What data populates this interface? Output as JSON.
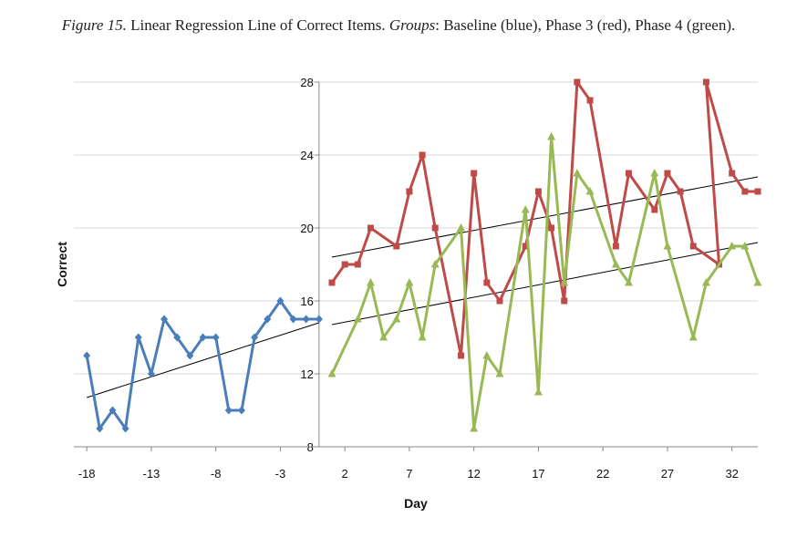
{
  "caption": {
    "figure_label": "Figure 15.",
    "title": " Linear Regression Line of Correct Items. ",
    "groups_label": "Groups",
    "groups_text": ": Baseline (blue), Phase 3 (red), Phase 4 (green)."
  },
  "chart_data": {
    "type": "line",
    "xlabel": "Day",
    "ylabel": "Correct",
    "xlim": [
      -19,
      34
    ],
    "ylim": [
      8,
      28
    ],
    "x_ticks": [
      -18,
      -13,
      -8,
      -3,
      2,
      7,
      12,
      17,
      22,
      27,
      32
    ],
    "y_ticks": [
      8,
      12,
      16,
      20,
      24,
      28
    ],
    "grid": "horizontal",
    "legend": "none",
    "series": [
      {
        "color": "#4a7ebb",
        "marker": "diamond",
        "x": [
          -18,
          -17,
          -16,
          -15,
          -14,
          -13,
          -12,
          -11,
          -10,
          -9,
          -8,
          -7,
          -6,
          -5,
          -4,
          -3,
          -2,
          -1,
          0
        ],
        "y": [
          13,
          9,
          10,
          9,
          14,
          12,
          15,
          14,
          13,
          14,
          14,
          10,
          10,
          14,
          15,
          16,
          15,
          15,
          15
        ]
      },
      {
        "color": "#be4b48",
        "marker": "square",
        "x": [
          1,
          2,
          3,
          4,
          6,
          7,
          8,
          9,
          11,
          12,
          13,
          14,
          16,
          17,
          18,
          19,
          20,
          21,
          23,
          24,
          26,
          27,
          28,
          29,
          31,
          30,
          32,
          33,
          34
        ],
        "y": [
          17,
          18,
          18,
          20,
          19,
          22,
          24,
          20,
          13,
          23,
          17,
          16,
          19,
          22,
          20,
          16,
          28,
          27,
          19,
          23,
          21,
          23,
          22,
          19,
          18,
          28,
          23,
          22,
          22
        ]
      },
      {
        "color": "#98b954",
        "marker": "triangle",
        "x": [
          1,
          3,
          4,
          5,
          6,
          7,
          8,
          9,
          11,
          12,
          13,
          14,
          16,
          17,
          18,
          19,
          20,
          21,
          23,
          24,
          26,
          27,
          29,
          30,
          32,
          33,
          34
        ],
        "y": [
          12,
          15,
          17,
          14,
          15,
          17,
          14,
          18,
          20,
          9,
          13,
          12,
          21,
          11,
          25,
          17,
          23,
          22,
          18,
          17,
          23,
          19,
          14,
          17,
          19,
          19,
          17
        ]
      }
    ],
    "trendlines": [
      {
        "color": "#000000",
        "x": [
          -18,
          0
        ],
        "y": [
          10.7,
          14.8
        ]
      },
      {
        "color": "#000000",
        "x": [
          1,
          34
        ],
        "y": [
          18.4,
          22.8
        ]
      },
      {
        "color": "#000000",
        "x": [
          1,
          34
        ],
        "y": [
          14.7,
          19.2
        ]
      }
    ]
  }
}
